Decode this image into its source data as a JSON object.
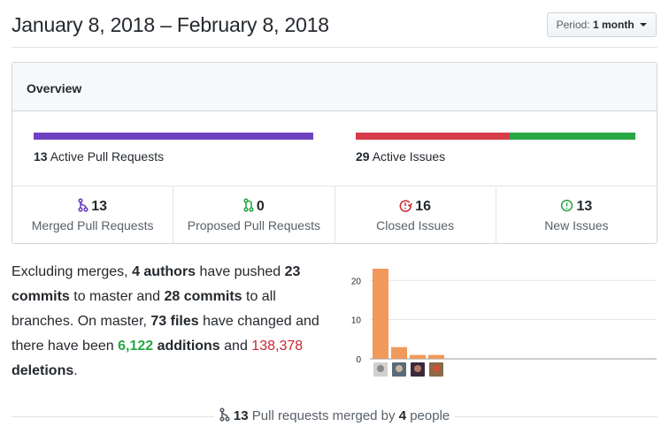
{
  "header": {
    "title": "January 8, 2018 – February 8, 2018",
    "period_label": "Period:",
    "period_value": "1 month"
  },
  "overview": {
    "title": "Overview",
    "pull_requests": {
      "count": "13",
      "label": "Active Pull Requests",
      "bar_color": "#6f42c1",
      "bar_fraction": 1.0
    },
    "issues": {
      "count": "29",
      "label": "Active Issues",
      "closed_color": "#d73a49",
      "new_color": "#28a745",
      "closed": 16,
      "new": 13
    },
    "stats": [
      {
        "num": "13",
        "label": "Merged Pull Requests",
        "icon": "git-merge-icon",
        "color": "#6f42c1"
      },
      {
        "num": "0",
        "label": "Proposed Pull Requests",
        "icon": "git-pull-request-icon",
        "color": "#28a745"
      },
      {
        "num": "16",
        "label": "Closed Issues",
        "icon": "issue-closed-icon",
        "color": "#cb2431"
      },
      {
        "num": "13",
        "label": "New Issues",
        "icon": "issue-opened-icon",
        "color": "#28a745"
      }
    ]
  },
  "summary": {
    "t1": "Excluding merges, ",
    "authors": "4 authors",
    "t2": " have pushed ",
    "commits_master": "23 commits",
    "t3": " to master and ",
    "commits_all": "28 commits",
    "t4": " to all branches. On master, ",
    "files": "73 files",
    "t5": " have changed and there have been ",
    "additions_num": "6,122",
    "additions_word": "additions",
    "t6": " and ",
    "deletions_num": "138,378",
    "deletions_word": "deletions",
    "t7": "."
  },
  "chart_data": {
    "type": "bar",
    "categories": [
      "author-1",
      "author-2",
      "author-3",
      "author-4"
    ],
    "values": [
      23,
      3,
      1,
      1
    ],
    "yticks": [
      0,
      10,
      20
    ],
    "ylim": [
      0,
      23
    ],
    "bar_color": "#f0995a",
    "grid": true
  },
  "footer": {
    "count": "13",
    "text1": " Pull requests merged by ",
    "people": "4",
    "text2": " people"
  }
}
